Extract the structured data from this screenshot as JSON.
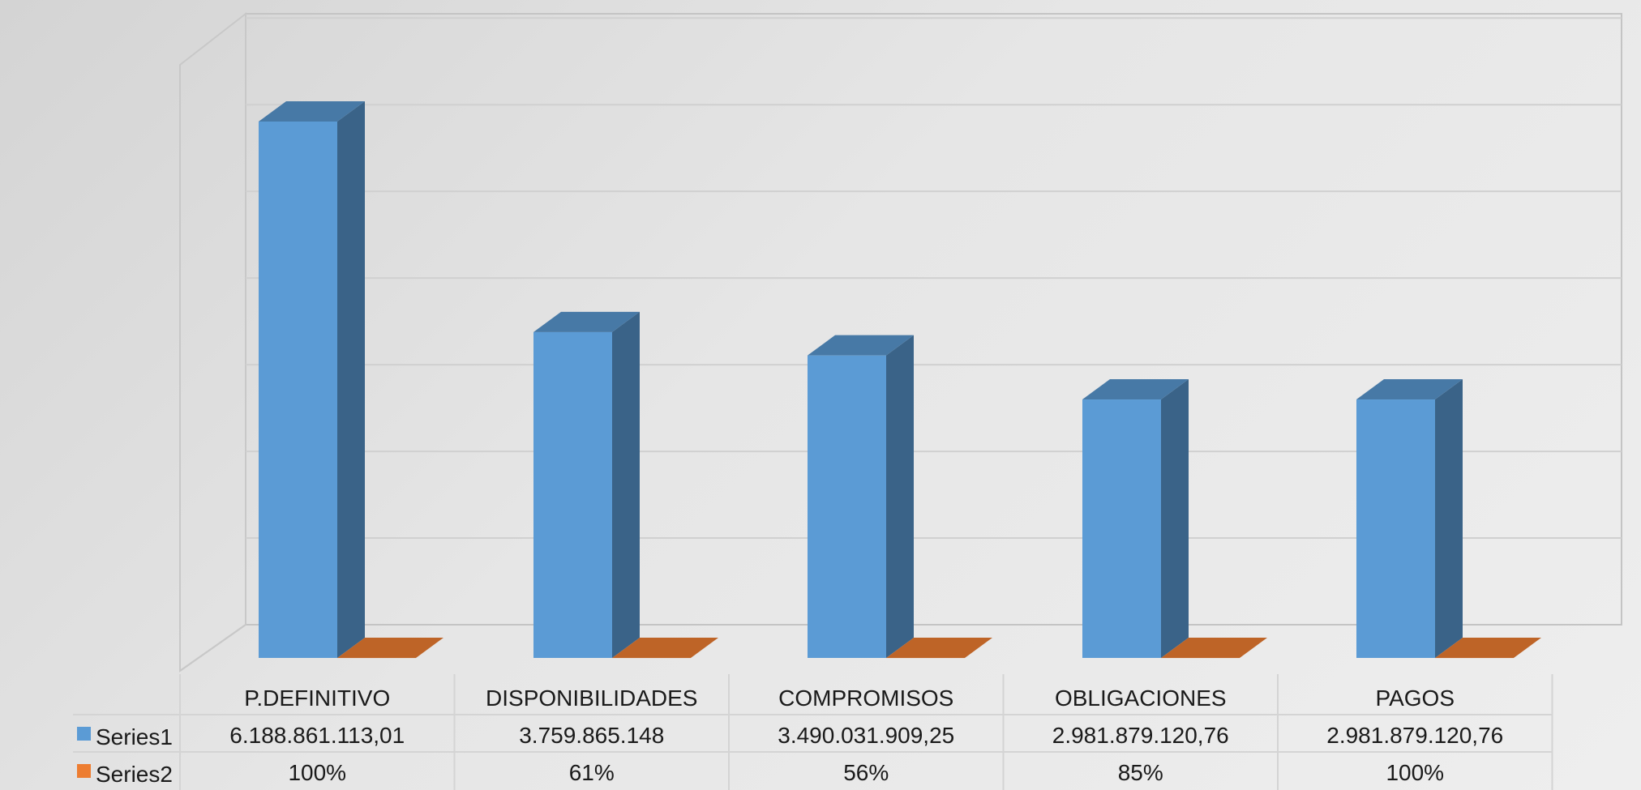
{
  "chart_data": {
    "type": "bar",
    "style": "3d-column",
    "categories": [
      "P.DEFINITIVO",
      "DISPONIBILIDADES",
      "COMPROMISOS",
      "OBLIGACIONES",
      "PAGOS"
    ],
    "series": [
      {
        "name": "Series1",
        "color": "#5b9bd5",
        "values": [
          6188861113.01,
          3759865148,
          3490031909.25,
          2981879120.76,
          2981879120.76
        ],
        "labels": [
          "6.188.861.113,01",
          "3.759.865.148",
          "3.490.031.909,25",
          "2.981.879.120,76",
          "2.981.879.120,76"
        ]
      },
      {
        "name": "Series2",
        "color": "#ed7d31",
        "values": [
          1.0,
          0.61,
          0.56,
          0.85,
          1.0
        ],
        "labels": [
          "100%",
          "61%",
          "56%",
          "85%",
          "100%"
        ]
      }
    ],
    "title": "",
    "xlabel": "",
    "ylabel": "",
    "ylim": [
      0,
      7000000000
    ],
    "grid": true,
    "legend": "data-table"
  }
}
